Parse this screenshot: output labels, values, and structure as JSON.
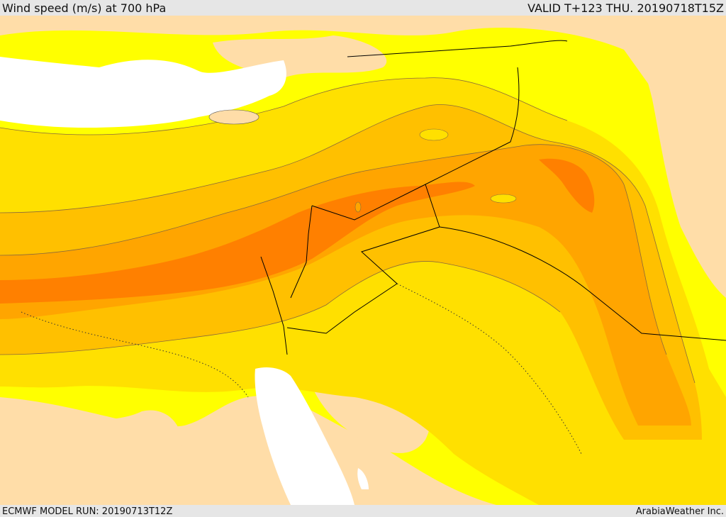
{
  "header": {
    "title": "Wind speed (m/s) at 700 hPa",
    "valid": "VALID T+123 THU. 20190718T15Z"
  },
  "footer": {
    "model_run": "ECMWF MODEL RUN: 20190713T12Z",
    "provider": "ArabiaWeather Inc."
  },
  "colors": {
    "land": "#ffdda8",
    "sea": "#ffffff",
    "level_yellow": "#ffff00",
    "level_gold": "#ffe000",
    "level_amber": "#ffc000",
    "level_orange": "#ffa500",
    "level_dark_orange": "#ff8000",
    "contour_line": "#8a6a3a",
    "border_line": "#000000"
  }
}
